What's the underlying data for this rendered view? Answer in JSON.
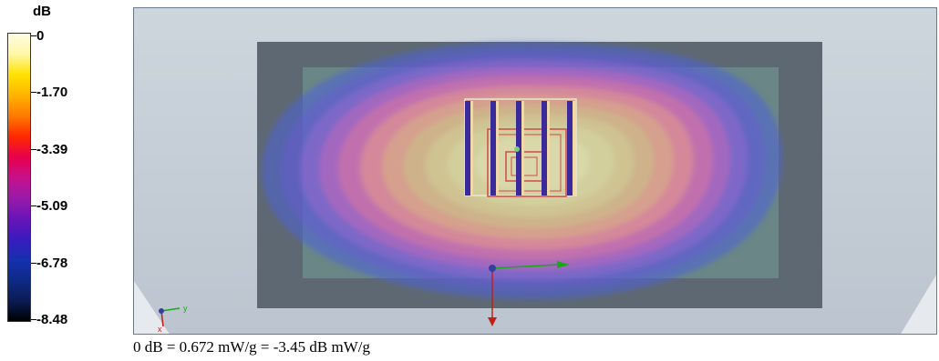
{
  "legend": {
    "unit": "dB",
    "ticks": [
      "0",
      "-1.70",
      "-3.39",
      "-5.09",
      "-6.78",
      "-8.48"
    ],
    "colors": [
      "#fffde0",
      "#fff6a8",
      "#ffe200",
      "#ffb400",
      "#ff7a00",
      "#ff2a00",
      "#e8004a",
      "#c8108a",
      "#9a1aa8",
      "#6a14b8",
      "#3a1ac0",
      "#1630b0",
      "#0e2a86",
      "#0a1c55",
      "#000000"
    ]
  },
  "axes": {
    "y_label": "y",
    "x_label": "x"
  },
  "caption": "0 dB = 0.672 mW/g = -3.45 dB mW/g",
  "colors": {
    "background": "#c7d0d9",
    "phantom": "#5c6670",
    "inner_plate": "#6f8a8a",
    "axis_green": "#1aa81a",
    "axis_red": "#c0201a",
    "antenna": "#d24a4a"
  }
}
